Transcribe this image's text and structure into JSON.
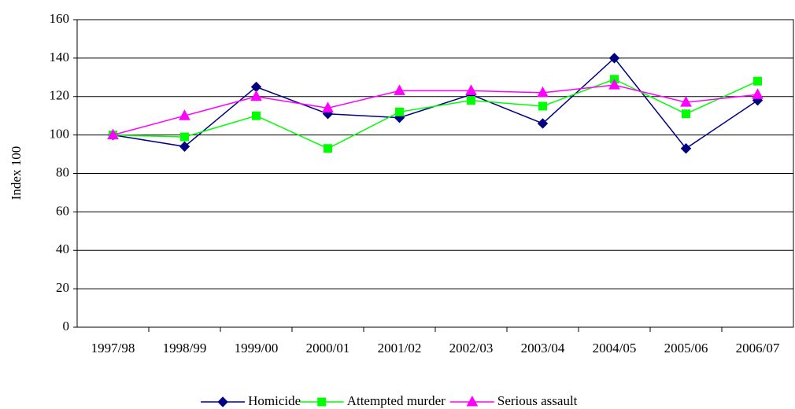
{
  "chart_data": {
    "type": "line",
    "y_label": "Index 100",
    "categories": [
      "1997/98",
      "1998/99",
      "1999/00",
      "2000/01",
      "2001/02",
      "2002/03",
      "2003/04",
      "2004/05",
      "2005/06",
      "2006/07"
    ],
    "series": [
      {
        "name": "Homicide",
        "color": "#000080",
        "marker": "diamond",
        "values": [
          100,
          94,
          125,
          111,
          109,
          121,
          106,
          140,
          93,
          118
        ]
      },
      {
        "name": "Attempted murder",
        "color": "#00ff00",
        "marker": "square",
        "values": [
          100,
          99,
          110,
          93,
          112,
          118,
          115,
          129,
          111,
          128
        ]
      },
      {
        "name": "Serious assault",
        "color": "#ff00ff",
        "marker": "triangle",
        "values": [
          100,
          110,
          120,
          114,
          123,
          123,
          122,
          126,
          117,
          121
        ]
      }
    ],
    "ylim": [
      0,
      160
    ],
    "yticks": [
      0,
      20,
      40,
      60,
      80,
      100,
      120,
      140,
      160
    ],
    "grid": true,
    "legend": "bottom"
  }
}
